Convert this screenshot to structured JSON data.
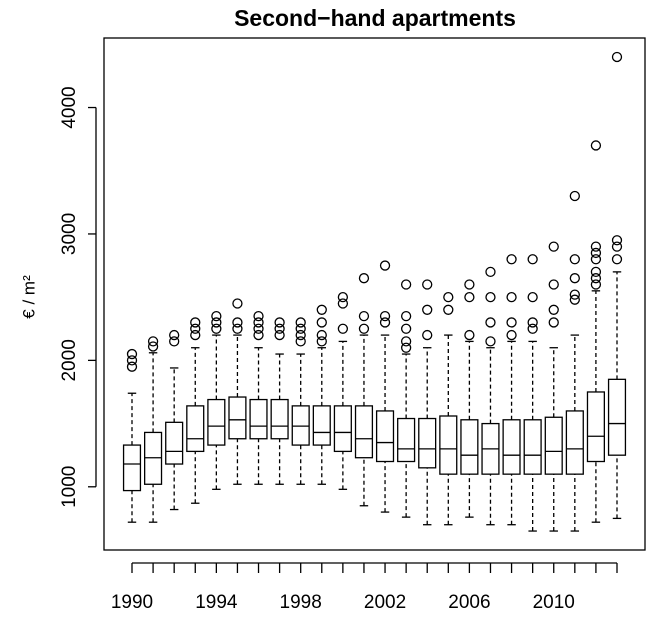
{
  "chart_data": {
    "type": "boxplot",
    "title": "Second−hand apartments",
    "ylabel": "€ / m²",
    "categories": [
      "1990",
      null,
      null,
      null,
      "1994",
      null,
      null,
      null,
      "1998",
      null,
      null,
      null,
      "2002",
      null,
      null,
      null,
      "2006",
      null,
      null,
      null,
      "2010",
      null,
      null,
      null
    ],
    "ylim": [
      500,
      4550
    ],
    "yticks": [
      1000,
      2000,
      3000,
      4000
    ],
    "boxes": [
      {
        "low": 720,
        "q1": 970,
        "median": 1180,
        "q3": 1330,
        "high": 1740,
        "outliers": [
          1950,
          2000,
          2050
        ]
      },
      {
        "low": 720,
        "q1": 1020,
        "median": 1230,
        "q3": 1430,
        "high": 2060,
        "outliers": [
          2110,
          2150
        ]
      },
      {
        "low": 820,
        "q1": 1180,
        "median": 1280,
        "q3": 1510,
        "high": 1940,
        "outliers": [
          2150,
          2200
        ]
      },
      {
        "low": 870,
        "q1": 1280,
        "median": 1380,
        "q3": 1640,
        "high": 2100,
        "outliers": [
          2200,
          2250,
          2300
        ]
      },
      {
        "low": 980,
        "q1": 1330,
        "median": 1480,
        "q3": 1690,
        "high": 2200,
        "outliers": [
          2250,
          2300,
          2350
        ]
      },
      {
        "low": 1020,
        "q1": 1380,
        "median": 1530,
        "q3": 1710,
        "high": 2200,
        "outliers": [
          2250,
          2300,
          2450
        ]
      },
      {
        "low": 1020,
        "q1": 1380,
        "median": 1480,
        "q3": 1690,
        "high": 2100,
        "outliers": [
          2200,
          2250,
          2300,
          2350
        ]
      },
      {
        "low": 1020,
        "q1": 1380,
        "median": 1480,
        "q3": 1690,
        "high": 2050,
        "outliers": [
          2200,
          2250,
          2300
        ]
      },
      {
        "low": 1020,
        "q1": 1330,
        "median": 1480,
        "q3": 1640,
        "high": 2050,
        "outliers": [
          2150,
          2200,
          2250,
          2300
        ]
      },
      {
        "low": 1020,
        "q1": 1330,
        "median": 1430,
        "q3": 1640,
        "high": 2100,
        "outliers": [
          2150,
          2200,
          2300,
          2400
        ]
      },
      {
        "low": 980,
        "q1": 1280,
        "median": 1430,
        "q3": 1640,
        "high": 2150,
        "outliers": [
          2250,
          2450,
          2500
        ]
      },
      {
        "low": 850,
        "q1": 1230,
        "median": 1380,
        "q3": 1640,
        "high": 2200,
        "outliers": [
          2250,
          2350,
          2650
        ]
      },
      {
        "low": 800,
        "q1": 1200,
        "median": 1350,
        "q3": 1600,
        "high": 2200,
        "outliers": [
          2300,
          2350,
          2750
        ]
      },
      {
        "low": 760,
        "q1": 1200,
        "median": 1300,
        "q3": 1540,
        "high": 2050,
        "outliers": [
          2100,
          2150,
          2250,
          2350,
          2600
        ]
      },
      {
        "low": 700,
        "q1": 1150,
        "median": 1300,
        "q3": 1540,
        "high": 2100,
        "outliers": [
          2200,
          2400,
          2600
        ]
      },
      {
        "low": 700,
        "q1": 1100,
        "median": 1300,
        "q3": 1560,
        "high": 2200,
        "outliers": [
          2400,
          2500
        ]
      },
      {
        "low": 760,
        "q1": 1100,
        "median": 1250,
        "q3": 1530,
        "high": 2150,
        "outliers": [
          2200,
          2500,
          2600
        ]
      },
      {
        "low": 700,
        "q1": 1100,
        "median": 1300,
        "q3": 1500,
        "high": 2100,
        "outliers": [
          2150,
          2300,
          2500,
          2700
        ]
      },
      {
        "low": 700,
        "q1": 1100,
        "median": 1250,
        "q3": 1530,
        "high": 2150,
        "outliers": [
          2200,
          2300,
          2500,
          2800
        ]
      },
      {
        "low": 650,
        "q1": 1100,
        "median": 1250,
        "q3": 1530,
        "high": 2150,
        "outliers": [
          2250,
          2300,
          2500,
          2800
        ]
      },
      {
        "low": 650,
        "q1": 1100,
        "median": 1280,
        "q3": 1550,
        "high": 2100,
        "outliers": [
          2300,
          2400,
          2600,
          2900
        ]
      },
      {
        "low": 650,
        "q1": 1100,
        "median": 1300,
        "q3": 1600,
        "high": 2200,
        "outliers": [
          2480,
          2520,
          2650,
          2800,
          3300
        ]
      },
      {
        "low": 720,
        "q1": 1200,
        "median": 1400,
        "q3": 1750,
        "high": 2550,
        "outliers": [
          2600,
          2650,
          2700,
          2800,
          2850,
          2900,
          3700
        ]
      },
      {
        "low": 750,
        "q1": 1250,
        "median": 1500,
        "q3": 1850,
        "high": 2700,
        "outliers": [
          2800,
          2900,
          2950,
          4400
        ]
      }
    ]
  }
}
